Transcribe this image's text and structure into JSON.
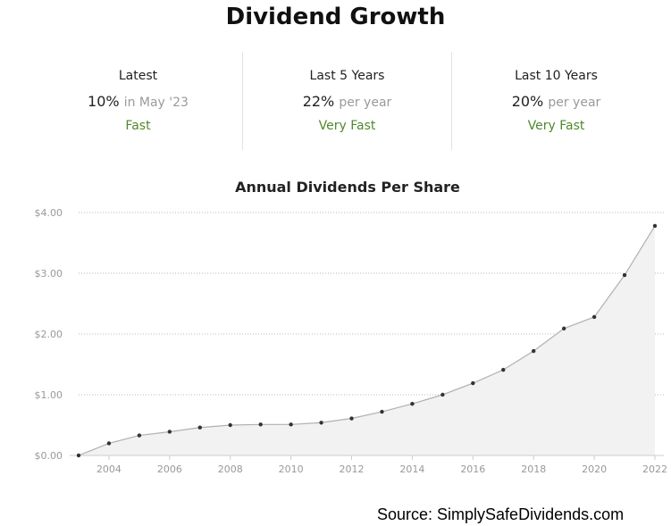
{
  "title": "Dividend Growth",
  "stats": [
    {
      "label": "Latest",
      "value": "10%",
      "qualifier": "in May '23",
      "rating": "Fast"
    },
    {
      "label": "Last 5 Years",
      "value": "22%",
      "qualifier": "per year",
      "rating": "Very Fast"
    },
    {
      "label": "Last 10 Years",
      "value": "20%",
      "qualifier": "per year",
      "rating": "Very Fast"
    }
  ],
  "source": "Source: SimplySafeDividends.com",
  "colors": {
    "rating": "#4e8a2c",
    "line": "#b0b0b0",
    "area": "#f2f2f2",
    "point": "#333333"
  },
  "chart_data": {
    "type": "area",
    "title": "Annual Dividends Per Share",
    "xlabel": "",
    "ylabel": "",
    "ylim": [
      0,
      4
    ],
    "yticks": [
      0,
      1,
      2,
      3,
      4
    ],
    "ytick_labels": [
      "$0.00",
      "$1.00",
      "$2.00",
      "$3.00",
      "$4.00"
    ],
    "xticks": [
      2004,
      2006,
      2008,
      2010,
      2012,
      2014,
      2016,
      2018,
      2020,
      2022
    ],
    "xtick_labels": [
      "2004",
      "2006",
      "2008",
      "2010",
      "2012",
      "2014",
      "2016",
      "2018",
      "2020",
      "2022"
    ],
    "grid": true,
    "x": [
      2003,
      2004,
      2005,
      2006,
      2007,
      2008,
      2009,
      2010,
      2011,
      2012,
      2013,
      2014,
      2015,
      2016,
      2017,
      2018,
      2019,
      2020,
      2021,
      2022
    ],
    "values": [
      0.0,
      0.2,
      0.33,
      0.39,
      0.46,
      0.5,
      0.51,
      0.51,
      0.54,
      0.61,
      0.72,
      0.85,
      1.0,
      1.19,
      1.41,
      1.72,
      2.09,
      2.28,
      2.97,
      3.78
    ]
  }
}
